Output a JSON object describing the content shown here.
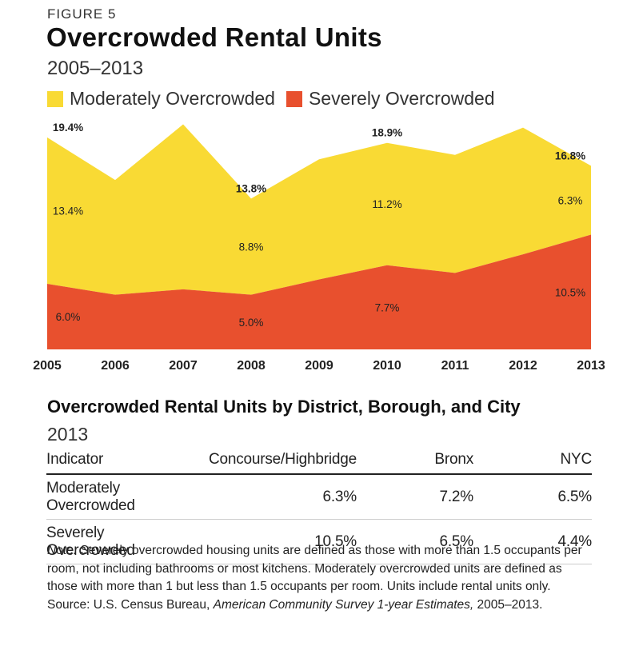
{
  "figure_label": "FIGURE 5",
  "title": "Overcrowded Rental Units",
  "subtitle": "2005–2013",
  "colors": {
    "moderate": "#f9da34",
    "severe": "#e8502e"
  },
  "legend": [
    {
      "label": "Moderately Overcrowded",
      "color": "#f9da34"
    },
    {
      "label": "Severely Overcrowded",
      "color": "#e8502e"
    }
  ],
  "chart_data": {
    "type": "area",
    "stacked": true,
    "x": [
      "2005",
      "2006",
      "2007",
      "2008",
      "2009",
      "2010",
      "2011",
      "2012",
      "2013"
    ],
    "series": [
      {
        "name": "Severely Overcrowded",
        "values": [
          6.0,
          5.0,
          5.5,
          5.0,
          6.4,
          7.7,
          7.0,
          8.7,
          10.5
        ]
      },
      {
        "name": "Moderately Overcrowded",
        "values": [
          13.4,
          10.5,
          15.1,
          8.8,
          11.0,
          11.2,
          10.8,
          11.6,
          6.3
        ]
      }
    ],
    "ylim": [
      0,
      21
    ],
    "labels": [
      {
        "series": "Moderately Overcrowded",
        "index": 0,
        "text": "13.4%"
      },
      {
        "series": "Moderately Overcrowded",
        "index": 3,
        "text": "8.8%"
      },
      {
        "series": "Moderately Overcrowded",
        "index": 5,
        "text": "11.2%"
      },
      {
        "series": "Moderately Overcrowded",
        "index": 8,
        "text": "6.3%"
      },
      {
        "series": "Severely Overcrowded",
        "index": 0,
        "text": "6.0%"
      },
      {
        "series": "Severely Overcrowded",
        "index": 3,
        "text": "5.0%"
      },
      {
        "series": "Severely Overcrowded",
        "index": 5,
        "text": "7.7%"
      },
      {
        "series": "Severely Overcrowded",
        "index": 8,
        "text": "10.5%"
      },
      {
        "series": "Total",
        "index": 0,
        "text": "19.4%"
      },
      {
        "series": "Total",
        "index": 3,
        "text": "13.8%"
      },
      {
        "series": "Total",
        "index": 5,
        "text": "18.9%"
      },
      {
        "series": "Total",
        "index": 8,
        "text": "16.8%"
      }
    ]
  },
  "table": {
    "title": "Overcrowded Rental Units by District, Borough, and City",
    "subtitle": "2013",
    "headers": [
      "Indicator",
      "Concourse/Highbridge",
      "Bronx",
      "NYC"
    ],
    "rows": [
      [
        "Moderately Overcrowded",
        "6.3%",
        "7.2%",
        "6.5%"
      ],
      [
        "Severely Overcrowded",
        "10.5%",
        "6.5%",
        "4.4%"
      ]
    ]
  },
  "note": {
    "label": "Note:",
    "text": " Severely overcrowded housing units are defined as those with more than 1.5 occupants per room, not including bathrooms or most kitchens. Moderately overcrowded units are defined as those with more than 1 but less than 1.5 occupants per room. Units include rental units only.",
    "source_prefix": "Source: U.S. Census Bureau, ",
    "source_title": "American Community Survey 1-year Estimates,",
    "source_suffix": " 2005–2013."
  }
}
